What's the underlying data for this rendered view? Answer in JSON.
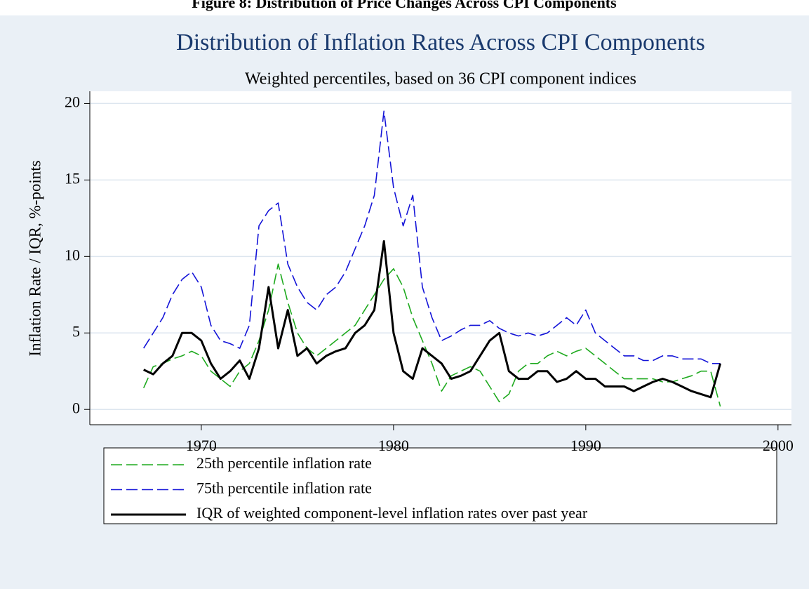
{
  "chart_data": {
    "type": "line",
    "caption": "Figure 8: Distribution of Price Changes Across CPI Components",
    "title": "Distribution of Inflation Rates Across CPI Components",
    "subtitle": "Weighted percentiles, based on 36 CPI component indices",
    "y_label": "Inflation Rate / IQR, %-points",
    "x": [
      1967,
      1967.5,
      1968,
      1968.5,
      1969,
      1969.5,
      1970,
      1970.5,
      1971,
      1971.5,
      1972,
      1972.5,
      1973,
      1973.5,
      1974,
      1974.5,
      1975,
      1975.5,
      1976,
      1976.5,
      1977,
      1977.5,
      1978,
      1978.5,
      1979,
      1979.5,
      1980,
      1980.5,
      1981,
      1981.5,
      1982,
      1982.5,
      1983,
      1983.5,
      1984,
      1984.5,
      1985,
      1985.5,
      1986,
      1986.5,
      1987,
      1987.5,
      1988,
      1988.5,
      1989,
      1989.5,
      1990,
      1990.5,
      1991,
      1991.5,
      1992,
      1992.5,
      1993,
      1993.5,
      1994,
      1994.5,
      1995,
      1995.5,
      1996,
      1996.5,
      1997
    ],
    "series": [
      {
        "name": "25th percentile inflation rate",
        "color": "#1faa1f",
        "dashed": true,
        "values": [
          1.4,
          2.8,
          3.0,
          3.3,
          3.5,
          3.8,
          3.5,
          2.5,
          2.0,
          1.5,
          2.5,
          3.0,
          4.5,
          6.5,
          9.5,
          7.0,
          5.0,
          4.0,
          3.5,
          4.0,
          4.5,
          5.0,
          5.5,
          6.5,
          7.5,
          8.5,
          9.2,
          8.0,
          6.0,
          4.5,
          3.0,
          1.2,
          2.2,
          2.5,
          2.8,
          2.5,
          1.5,
          0.5,
          1.0,
          2.5,
          3.0,
          3.0,
          3.5,
          3.8,
          3.5,
          3.8,
          4.0,
          3.5,
          3.0,
          2.5,
          2.0,
          2.0,
          2.0,
          2.0,
          1.8,
          1.8,
          2.0,
          2.2,
          2.5,
          2.5,
          0.2
        ]
      },
      {
        "name": "75th percentile inflation rate",
        "color": "#1414d8",
        "dashed": true,
        "values": [
          4.0,
          5.0,
          6.0,
          7.5,
          8.5,
          9.0,
          8.0,
          5.5,
          4.5,
          4.3,
          4.0,
          5.5,
          12.0,
          13.0,
          13.5,
          9.5,
          8.0,
          7.0,
          6.5,
          7.5,
          8.0,
          9.0,
          10.5,
          12.0,
          14.0,
          19.5,
          14.5,
          12.0,
          14.0,
          8.0,
          6.0,
          4.5,
          4.8,
          5.2,
          5.5,
          5.5,
          5.8,
          5.3,
          5.0,
          4.8,
          5.0,
          4.8,
          5.0,
          5.5,
          6.0,
          5.5,
          6.5,
          5.0,
          4.5,
          4.0,
          3.5,
          3.5,
          3.2,
          3.2,
          3.5,
          3.5,
          3.3,
          3.3,
          3.3,
          3.0,
          3.0
        ]
      },
      {
        "name": "IQR of weighted component-level inflation rates over past year",
        "color": "#000000",
        "dashed": false,
        "values": [
          2.6,
          2.3,
          3.0,
          3.5,
          5.0,
          5.0,
          4.5,
          3.0,
          2.0,
          2.5,
          3.2,
          2.0,
          4.0,
          8.0,
          4.0,
          6.5,
          3.5,
          4.0,
          3.0,
          3.5,
          3.8,
          4.0,
          5.0,
          5.5,
          6.5,
          11.0,
          5.0,
          2.5,
          2.0,
          4.0,
          3.5,
          3.0,
          2.0,
          2.2,
          2.5,
          3.5,
          4.5,
          5.0,
          2.5,
          2.0,
          2.0,
          2.5,
          2.5,
          1.8,
          2.0,
          2.5,
          2.0,
          2.0,
          1.5,
          1.5,
          1.5,
          1.2,
          1.5,
          1.8,
          2.0,
          1.8,
          1.5,
          1.2,
          1.0,
          0.8,
          3.0
        ]
      }
    ],
    "xlim": [
      1964.2,
      2000.7
    ],
    "ylim": [
      -1,
      20.8
    ],
    "xticks": [
      1970,
      1980,
      1990,
      2000
    ],
    "yticks": [
      0,
      5,
      10,
      15,
      20
    ],
    "grid": true,
    "legend": "bottom"
  }
}
